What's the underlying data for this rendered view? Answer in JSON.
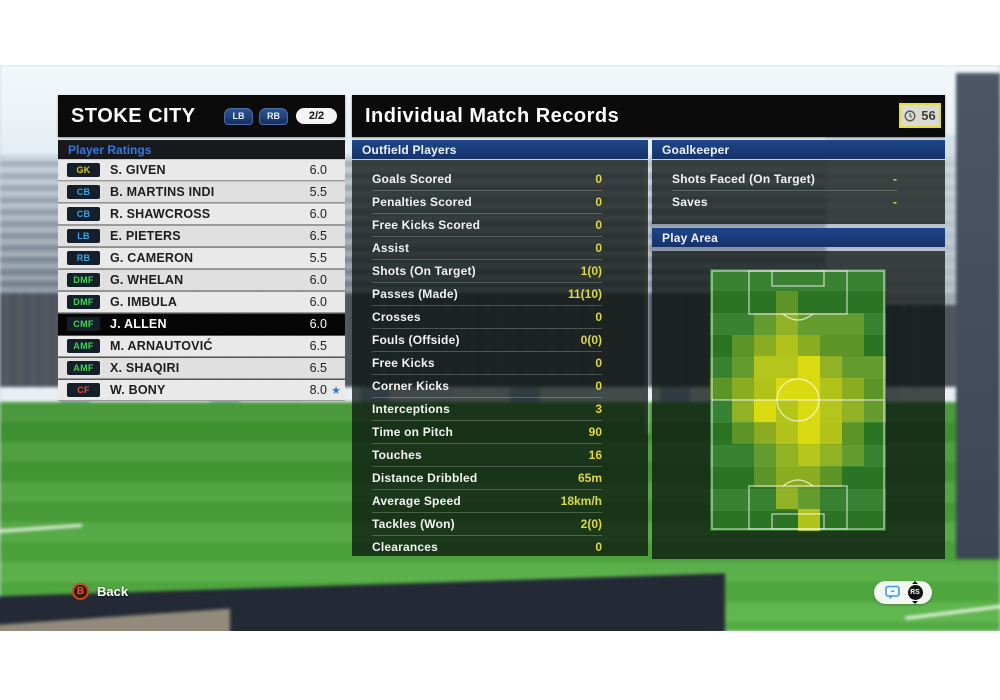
{
  "team_panel": {
    "title": "STOKE CITY",
    "shoulder_buttons": [
      "LB",
      "RB"
    ],
    "page_indicator": "2/2",
    "section_title": "Player Ratings",
    "players": [
      {
        "pos": "GK",
        "pos_color": "#e3c61d",
        "name": "S. GIVEN",
        "rating": "6.0",
        "selected": false,
        "star": false
      },
      {
        "pos": "CB",
        "pos_color": "#41a4e4",
        "name": "B. MARTINS INDI",
        "rating": "5.5",
        "selected": false,
        "star": false
      },
      {
        "pos": "CB",
        "pos_color": "#41a4e4",
        "name": "R. SHAWCROSS",
        "rating": "6.0",
        "selected": false,
        "star": false
      },
      {
        "pos": "LB",
        "pos_color": "#41a4e4",
        "name": "E. PIETERS",
        "rating": "6.5",
        "selected": false,
        "star": false
      },
      {
        "pos": "RB",
        "pos_color": "#41a4e4",
        "name": "G. CAMERON",
        "rating": "5.5",
        "selected": false,
        "star": false
      },
      {
        "pos": "DMF",
        "pos_color": "#43d355",
        "name": "G. WHELAN",
        "rating": "6.0",
        "selected": false,
        "star": false
      },
      {
        "pos": "DMF",
        "pos_color": "#43d355",
        "name": "G. IMBULA",
        "rating": "6.0",
        "selected": false,
        "star": false
      },
      {
        "pos": "CMF",
        "pos_color": "#43d355",
        "name": "J. ALLEN",
        "rating": "6.0",
        "selected": true,
        "star": false
      },
      {
        "pos": "AMF",
        "pos_color": "#43d355",
        "name": "M. ARNAUTOVIĆ",
        "rating": "6.5",
        "selected": false,
        "star": false
      },
      {
        "pos": "AMF",
        "pos_color": "#43d355",
        "name": "X. SHAQIRI",
        "rating": "6.5",
        "selected": false,
        "star": false
      },
      {
        "pos": "CF",
        "pos_color": "#e8493c",
        "name": "W. BONY",
        "rating": "8.0",
        "selected": false,
        "star": true
      }
    ],
    "star_color": "#2e7bd6"
  },
  "records": {
    "title": "Individual Match Records",
    "clock_minutes": "56"
  },
  "outfield": {
    "header": "Outfield Players",
    "stats": [
      {
        "label": "Goals Scored",
        "value": "0"
      },
      {
        "label": "Penalties Scored",
        "value": "0"
      },
      {
        "label": "Free Kicks Scored",
        "value": "0"
      },
      {
        "label": "Assist",
        "value": "0"
      },
      {
        "label": "Shots (On Target)",
        "value": "1(0)"
      },
      {
        "label": "Passes (Made)",
        "value": "11(10)"
      },
      {
        "label": "Crosses",
        "value": "0"
      },
      {
        "label": "Fouls (Offside)",
        "value": "0(0)"
      },
      {
        "label": "Free Kicks",
        "value": "0"
      },
      {
        "label": "Corner Kicks",
        "value": "0"
      },
      {
        "label": "Interceptions",
        "value": "3"
      },
      {
        "label": "Time on Pitch",
        "value": "90"
      },
      {
        "label": "Touches",
        "value": "16"
      },
      {
        "label": "Distance Dribbled",
        "value": "65m"
      },
      {
        "label": "Average Speed",
        "value": "18km/h"
      },
      {
        "label": "Tackles (Won)",
        "value": "2(0)"
      },
      {
        "label": "Clearances",
        "value": "0"
      }
    ]
  },
  "goalkeeper": {
    "header": "Goalkeeper",
    "stats": [
      {
        "label": "Shots Faced (On Target)",
        "value": "-"
      },
      {
        "label": "Saves",
        "value": "-"
      }
    ]
  },
  "play_area": {
    "header": "Play Area",
    "heat_colors": {
      "0": "transparent",
      "1": "rgba(170,195,45,0.40)",
      "2": "rgba(205,210,30,0.60)",
      "3": "rgba(220,220,22,0.76)",
      "4": "rgba(236,229,14,0.90)"
    },
    "heat_grid": [
      [
        0,
        0,
        0,
        0,
        0,
        0,
        0,
        0
      ],
      [
        0,
        0,
        0,
        1,
        0,
        0,
        0,
        0
      ],
      [
        0,
        0,
        1,
        2,
        1,
        1,
        1,
        0
      ],
      [
        0,
        1,
        2,
        3,
        2,
        1,
        1,
        0
      ],
      [
        0,
        1,
        3,
        3,
        4,
        2,
        1,
        1
      ],
      [
        1,
        2,
        3,
        4,
        4,
        3,
        2,
        1
      ],
      [
        0,
        2,
        4,
        3,
        4,
        3,
        2,
        1
      ],
      [
        0,
        1,
        2,
        3,
        4,
        3,
        1,
        0
      ],
      [
        0,
        0,
        1,
        2,
        3,
        2,
        1,
        0
      ],
      [
        0,
        0,
        1,
        2,
        2,
        1,
        0,
        0
      ],
      [
        0,
        0,
        0,
        2,
        1,
        0,
        0,
        0
      ],
      [
        0,
        0,
        0,
        0,
        3,
        0,
        0,
        0
      ]
    ]
  },
  "footer": {
    "back_button_glyph": "B",
    "back_label": "Back"
  },
  "colors": {
    "value_yellow": "#ded943",
    "navy_header": "#16336a"
  }
}
